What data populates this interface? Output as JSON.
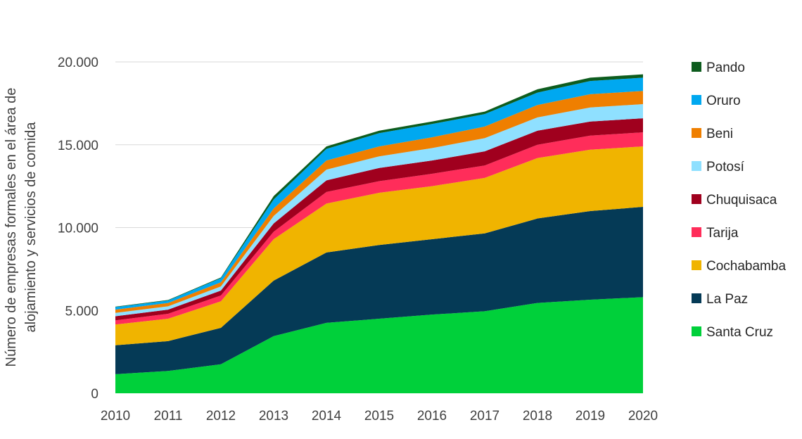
{
  "chart_data": {
    "type": "area",
    "stacked": true,
    "title": "",
    "xlabel": "",
    "ylabel_lines": [
      "Número de empresas formales en el área de",
      "alojamiento y servicios de comida"
    ],
    "x": [
      "2010",
      "2011",
      "2012",
      "2013",
      "2014",
      "2015",
      "2016",
      "2017",
      "2018",
      "2019",
      "2020"
    ],
    "ylim": [
      0,
      20000
    ],
    "yticks": [
      {
        "value": 0,
        "label": "0"
      },
      {
        "value": 5000,
        "label": "5.000"
      },
      {
        "value": 10000,
        "label": "10.000"
      },
      {
        "value": 15000,
        "label": "15.000"
      },
      {
        "value": 20000,
        "label": "20.000"
      }
    ],
    "grid": true,
    "legend_position": "right",
    "series": [
      {
        "name": "Santa Cruz",
        "color": "#00d03a",
        "values": [
          1150,
          1350,
          1750,
          3450,
          4250,
          4500,
          4750,
          4950,
          5450,
          5650,
          5800
        ]
      },
      {
        "name": "La Paz",
        "color": "#053a56",
        "values": [
          1750,
          1800,
          2200,
          3350,
          4250,
          4450,
          4550,
          4700,
          5100,
          5350,
          5450
        ]
      },
      {
        "name": "Cochabamba",
        "color": "#f0b400",
        "values": [
          1250,
          1350,
          1600,
          2500,
          2950,
          3150,
          3200,
          3350,
          3650,
          3700,
          3650
        ]
      },
      {
        "name": "Tarija",
        "color": "#ff2d5a",
        "values": [
          250,
          300,
          350,
          450,
          700,
          700,
          750,
          750,
          800,
          850,
          850
        ]
      },
      {
        "name": "Chuquisaca",
        "color": "#a0001e",
        "values": [
          250,
          250,
          300,
          500,
          700,
          800,
          800,
          850,
          850,
          850,
          850
        ]
      },
      {
        "name": "Potosí",
        "color": "#8fe0ff",
        "values": [
          200,
          200,
          250,
          450,
          650,
          700,
          750,
          800,
          800,
          850,
          850
        ]
      },
      {
        "name": "Beni",
        "color": "#ef7f00",
        "values": [
          200,
          200,
          250,
          450,
          550,
          600,
          650,
          700,
          750,
          800,
          800
        ]
      },
      {
        "name": "Oruro",
        "color": "#00a8f0",
        "values": [
          150,
          150,
          250,
          550,
          700,
          800,
          800,
          750,
          750,
          800,
          800
        ]
      },
      {
        "name": "Pando",
        "color": "#0d5c1e",
        "values": [
          30,
          30,
          40,
          200,
          150,
          150,
          150,
          150,
          200,
          200,
          200
        ]
      }
    ]
  }
}
